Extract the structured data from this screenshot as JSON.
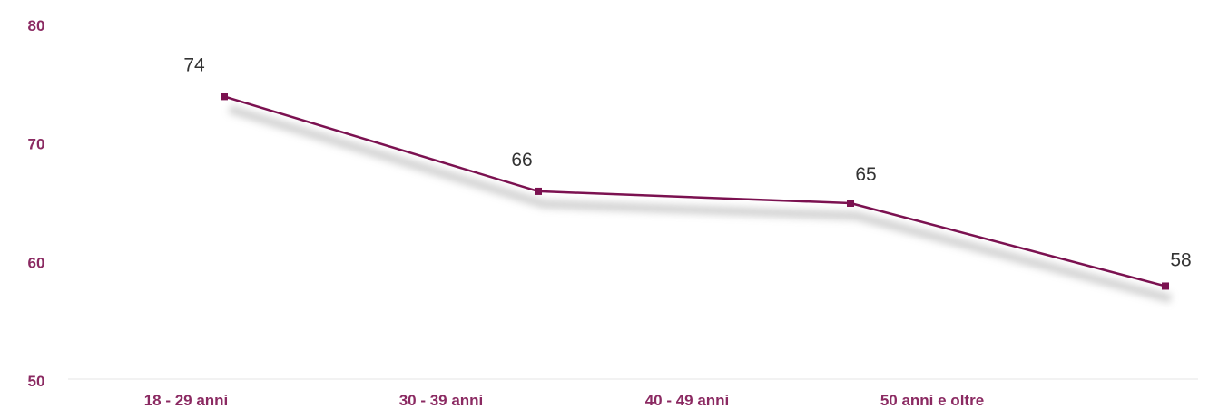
{
  "chart_data": {
    "type": "line",
    "title": "",
    "xlabel": "",
    "ylabel": "",
    "categories": [
      "18 - 29 anni",
      "30 - 39 anni",
      "40 - 49 anni",
      "50 anni e oltre"
    ],
    "x_values_plotted": [
      74,
      66,
      65,
      58
    ],
    "series": [
      {
        "values": [
          74,
          66,
          65,
          58
        ],
        "color": "#7b1150"
      }
    ],
    "ylim": [
      50,
      80
    ],
    "yticks": [
      50,
      60,
      70,
      80
    ],
    "grid": false,
    "legend": "none",
    "colors": {
      "line": "#7b1150",
      "axis_text": "#8b2a62",
      "data_label": "#333333",
      "shadow": "#c9c9c9",
      "axis_line": "#e6e6e6"
    }
  }
}
